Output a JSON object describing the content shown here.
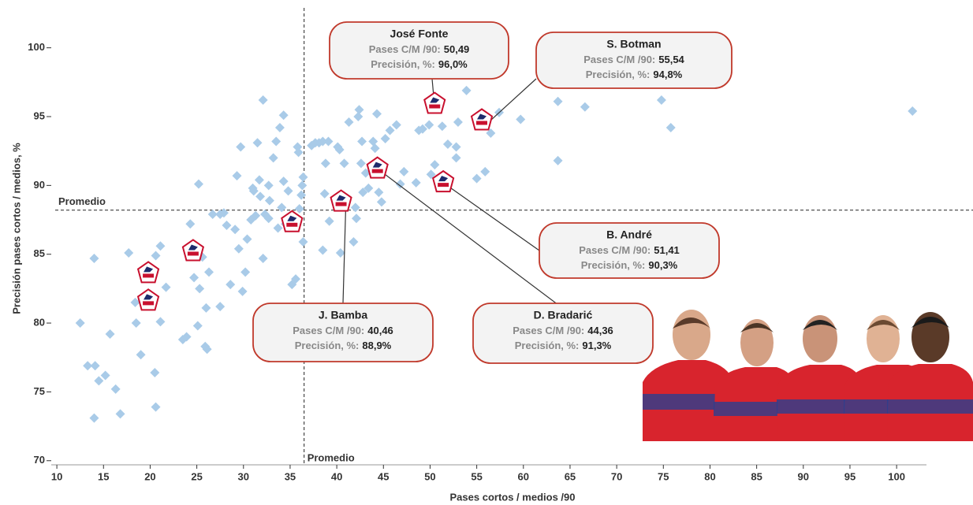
{
  "chart_data": {
    "type": "scatter",
    "x_label": "Pases cortos / medios /90",
    "y_label": "Precisión pases cortos / medios, %",
    "xlim": [
      9.4,
      103.2
    ],
    "ylim": [
      69.7,
      102.9
    ],
    "xticks": [
      10,
      15,
      20,
      25,
      30,
      35,
      40,
      45,
      50,
      55,
      60,
      65,
      70,
      75,
      80,
      85,
      90,
      95,
      100
    ],
    "yticks": [
      70,
      75,
      80,
      85,
      90,
      95,
      100
    ],
    "color": "#a9cbe8",
    "x": [
      12.5,
      13.3,
      14.0,
      14.1,
      14.5,
      15.2,
      15.7,
      14.0,
      16.3,
      16.8,
      17.7,
      18.5,
      19.0,
      18.4,
      20.5,
      20.6,
      21.1,
      21.1,
      21.7,
      20.6,
      23.5,
      23.9,
      24.3,
      24.7,
      25.1,
      25.3,
      25.1,
      25.2,
      25.6,
      26.0,
      25.9,
      26.1,
      26.3,
      26.7,
      27.5,
      27.5,
      27.9,
      28.2,
      28.6,
      29.1,
      29.3,
      29.5,
      29.7,
      29.9,
      30.2,
      30.4,
      30.8,
      31.0,
      31.1,
      31.3,
      31.5,
      31.7,
      31.8,
      32.1,
      32.1,
      32.3,
      32.7,
      32.7,
      32.8,
      33.2,
      33.5,
      33.7,
      33.9,
      34.1,
      34.3,
      34.3,
      34.5,
      34.8,
      35.2,
      35.6,
      35.8,
      35.9,
      36.0,
      36.2,
      36.3,
      36.4,
      36.4,
      37.3,
      37.7,
      38.1,
      38.5,
      39.1,
      38.8,
      38.7,
      38.5,
      39.2,
      40.1,
      40.3,
      40.4,
      40.8,
      41.3,
      41.8,
      42.0,
      42.1,
      42.3,
      42.4,
      42.6,
      42.7,
      42.8,
      43.1,
      43.4,
      43.9,
      44.1,
      44.3,
      44.4,
      44.5,
      44.8,
      45.2,
      45.7,
      46.4,
      46.8,
      47.2,
      48.5,
      48.8,
      49.2,
      49.9,
      50.1,
      50.5,
      51.3,
      51.9,
      52.8,
      52.8,
      53.0,
      53.9,
      55.0,
      55.9,
      56.5,
      57.4,
      59.7,
      63.7,
      63.7,
      66.6,
      74.8,
      75.8,
      101.7
    ],
    "values": [
      80.0,
      76.9,
      84.7,
      76.9,
      75.8,
      76.2,
      79.2,
      73.1,
      75.2,
      73.4,
      85.1,
      80.0,
      77.7,
      81.5,
      76.4,
      73.9,
      80.1,
      85.6,
      82.6,
      84.9,
      78.8,
      79.0,
      87.2,
      83.3,
      84.9,
      82.5,
      79.8,
      90.1,
      84.8,
      81.1,
      78.3,
      78.1,
      83.7,
      87.9,
      87.9,
      81.2,
      88.0,
      87.1,
      82.8,
      86.8,
      90.7,
      85.4,
      92.8,
      82.3,
      83.7,
      86.1,
      87.5,
      89.8,
      89.6,
      87.8,
      93.1,
      90.4,
      89.2,
      96.2,
      84.7,
      87.9,
      90.0,
      87.6,
      88.9,
      92.0,
      93.2,
      86.9,
      94.2,
      88.4,
      95.1,
      90.3,
      87.2,
      89.6,
      82.8,
      83.2,
      92.8,
      92.4,
      88.3,
      89.3,
      90.0,
      90.6,
      85.9,
      92.9,
      93.1,
      93.1,
      93.2,
      93.2,
      91.6,
      89.4,
      85.3,
      87.4,
      92.8,
      92.6,
      85.1,
      91.6,
      94.6,
      85.9,
      88.4,
      87.6,
      95.0,
      95.5,
      91.6,
      93.2,
      89.5,
      90.9,
      89.8,
      93.2,
      92.7,
      95.2,
      91.6,
      89.5,
      88.8,
      93.4,
      94.0,
      94.4,
      90.1,
      91.0,
      90.2,
      94.0,
      94.1,
      94.4,
      90.8,
      91.5,
      94.3,
      93.0,
      92.8,
      92.0,
      94.6,
      96.9,
      90.5,
      91.0,
      93.8,
      95.3,
      94.8,
      91.8,
      96.1,
      95.7,
      96.2,
      94.2,
      95.4
    ],
    "highlight": {
      "x": [
        35.2,
        24.6,
        19.8,
        19.8
      ],
      "values": [
        87.4,
        85.3,
        83.7,
        81.7
      ]
    },
    "mean_x": 36.5,
    "mean_y": 88.2,
    "mean_label": "Promedio",
    "callout_labels": [
      "Pases C/M /90:",
      "Precisión, %:"
    ],
    "annotations": [
      {
        "name": "José Fonte",
        "x": 50.49,
        "y": 96.0,
        "value_labels": [
          "50,49",
          "96,0%"
        ]
      },
      {
        "name": "S. Botman",
        "x": 55.54,
        "y": 94.8,
        "value_labels": [
          "55,54",
          "94,8%"
        ]
      },
      {
        "name": "B. André",
        "x": 51.41,
        "y": 90.3,
        "value_labels": [
          "51,41",
          "90,3%"
        ]
      },
      {
        "name": "D. Bradarić",
        "x": 44.36,
        "y": 91.3,
        "value_labels": [
          "44,36",
          "91,3%"
        ]
      },
      {
        "name": "J. Bamba",
        "x": 40.46,
        "y": 88.9,
        "value_labels": [
          "40,46",
          "88,9%"
        ]
      }
    ]
  }
}
